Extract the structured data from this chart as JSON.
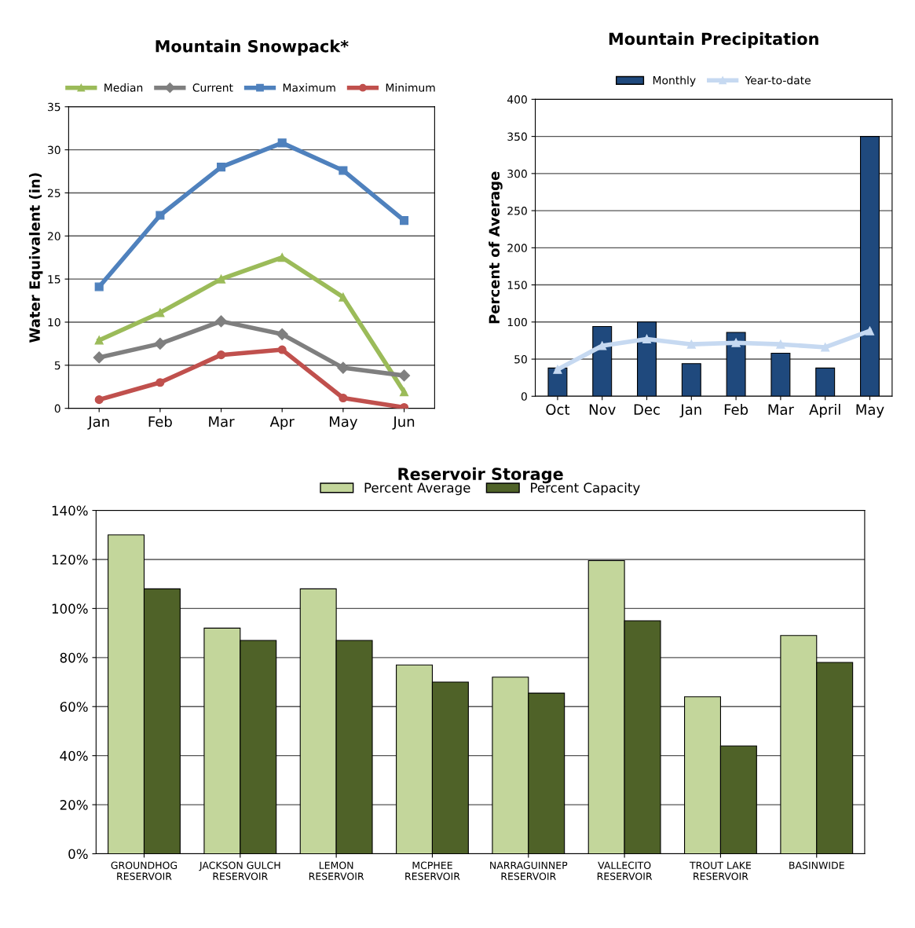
{
  "chart_data": [
    {
      "type": "line",
      "title": "Mountain Snowpack*",
      "ylabel": "Water Equivalent (in)",
      "categories": [
        "Jan",
        "Feb",
        "Mar",
        "Apr",
        "May",
        "Jun"
      ],
      "ylim": [
        0,
        35
      ],
      "yticks": [
        0,
        5,
        10,
        15,
        20,
        25,
        30,
        35
      ],
      "grid": "y",
      "legend": "top",
      "series": [
        {
          "name": "Median",
          "color": "#9bbb59",
          "marker": "triangle",
          "values": [
            7.9,
            11.1,
            15.0,
            17.5,
            12.9,
            1.9
          ]
        },
        {
          "name": "Current",
          "color": "#7f7f7f",
          "marker": "diamond",
          "values": [
            5.9,
            7.5,
            10.1,
            8.6,
            4.7,
            3.8
          ]
        },
        {
          "name": "Maximum",
          "color": "#4f81bd",
          "marker": "square",
          "values": [
            14.1,
            22.4,
            28.0,
            30.8,
            27.6,
            21.8
          ]
        },
        {
          "name": "Minimum",
          "color": "#c0504d",
          "marker": "circle",
          "values": [
            1.0,
            3.0,
            6.2,
            6.8,
            1.2,
            0.1
          ]
        }
      ]
    },
    {
      "type": "bar",
      "title": "Mountain Precipitation",
      "ylabel": "Percent of Average",
      "categories": [
        "Oct",
        "Nov",
        "Dec",
        "Jan",
        "Feb",
        "Mar",
        "April",
        "May"
      ],
      "ylim": [
        0,
        400
      ],
      "yticks": [
        0,
        50,
        100,
        150,
        200,
        250,
        300,
        350,
        400
      ],
      "grid": "y",
      "legend": "top",
      "series": [
        {
          "name": "Monthly",
          "color": "#1f497d",
          "values": [
            38,
            94,
            100,
            44,
            86,
            58,
            38,
            350
          ]
        },
        {
          "name": "Year-to-date",
          "type": "line",
          "marker": "triangle",
          "color": "#c6d9f1",
          "values": [
            36,
            68,
            77,
            70,
            72,
            70,
            66,
            88
          ]
        }
      ]
    },
    {
      "type": "bar",
      "title": "Reservoir Storage",
      "categories": [
        "GROUNDHOG\nRESERVOIR",
        "JACKSON GULCH\nRESERVOIR",
        "LEMON\nRESERVOIR",
        "MCPHEE\nRESERVOIR",
        "NARRAGUINNEP\nRESERVOIR",
        "VALLECITO\nRESERVOIR",
        "TROUT LAKE\nRESERVOIR",
        "BASINWIDE"
      ],
      "ylim": [
        0,
        140
      ],
      "yticks": [
        {
          "value": 0,
          "label": "0%"
        },
        {
          "value": 20,
          "label": "20%"
        },
        {
          "value": 40,
          "label": "40%"
        },
        {
          "value": 60,
          "label": "60%"
        },
        {
          "value": 80,
          "label": "80%"
        },
        {
          "value": 100,
          "label": "100%"
        },
        {
          "value": 120,
          "label": "120%"
        },
        {
          "value": 140,
          "label": "140%"
        }
      ],
      "grid": "y",
      "legend": "top",
      "series": [
        {
          "name": "Percent Average",
          "color": "#c3d69b",
          "values": [
            130,
            92,
            108,
            77,
            72,
            119.5,
            64,
            89
          ]
        },
        {
          "name": "Percent Capacity",
          "color": "#4f6228",
          "values": [
            108,
            87,
            87,
            70,
            65.5,
            95,
            44,
            78
          ]
        }
      ]
    }
  ]
}
